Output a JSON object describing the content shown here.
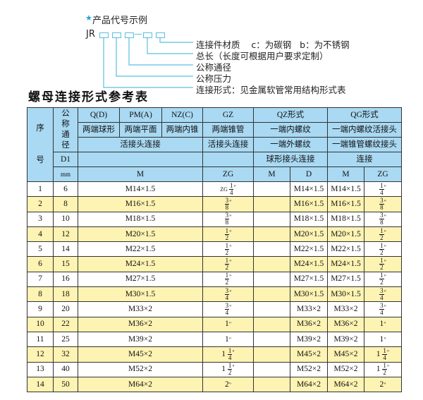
{
  "example": {
    "title": "产品代号示例",
    "star_icon": "star-icon",
    "code_prefix": "JR",
    "labels": [
      "连接件材质    c：为碳钢   b：为不锈钢",
      "总长（长度可根据用户要求定制）",
      "公称通径",
      "公称压力",
      "连接形式：见金属软管常用结构形式表"
    ],
    "accent_color": "#5bbfe0"
  },
  "table": {
    "title": "螺母连接形式参考表",
    "header": {
      "seq": [
        "序",
        "号"
      ],
      "nominal": "公称通径",
      "d1": "D1",
      "mm": "mm",
      "row1": [
        "Q(D)",
        "PM(A)",
        "NZ(C)",
        "GZ",
        "QZ形式",
        "QG形式"
      ],
      "row2": [
        "两端球形",
        "两端平面",
        "两端内锥",
        "两端锥管",
        "一端内螺纹",
        "一端内螺纹活接头"
      ],
      "row3": [
        "活接头连接",
        "活接头连接",
        "一端外螺纹",
        "一端锥管螺纹接头"
      ],
      "row4": [
        "",
        "",
        "球形接头连接",
        "连接"
      ],
      "row5": [
        "M",
        "ZG",
        "M",
        "D",
        "M",
        "ZG"
      ]
    },
    "header_color": "#a9d9f3",
    "alt_row_color": "#fdf3b3",
    "rows": [
      {
        "no": "1",
        "dn": "6",
        "m": "M14×1.5",
        "zg": {
          "pre": "ZG",
          "w": "",
          "n": "1",
          "d": "4"
        },
        "qzm": "",
        "qzd": "M14×1.5",
        "qgm": "M14×1.5",
        "qgzg": {
          "w": "",
          "n": "1",
          "d": "4"
        }
      },
      {
        "no": "2",
        "dn": "8",
        "m": "M16×1.5",
        "zg": {
          "w": "",
          "n": "3",
          "d": "8"
        },
        "qzm": "",
        "qzd": "M16×1.5",
        "qgm": "M16×1.5",
        "qgzg": {
          "w": "",
          "n": "3",
          "d": "8"
        }
      },
      {
        "no": "3",
        "dn": "10",
        "m": "M18×1.5",
        "zg": {
          "w": "",
          "n": "3",
          "d": "8"
        },
        "qzm": "",
        "qzd": "M18×1.5",
        "qgm": "M18×1.5",
        "qgzg": {
          "w": "",
          "n": "3",
          "d": "8"
        }
      },
      {
        "no": "4",
        "dn": "12",
        "m": "M20×1.5",
        "zg": {
          "w": "",
          "n": "1",
          "d": "2"
        },
        "qzm": "",
        "qzd": "M20×1.5",
        "qgm": "M20×1.5",
        "qgzg": {
          "w": "",
          "n": "1",
          "d": "2"
        }
      },
      {
        "no": "5",
        "dn": "14",
        "m": "M22×1.5",
        "zg": {
          "w": "",
          "n": "1",
          "d": "2"
        },
        "qzm": "",
        "qzd": "M22×1.5",
        "qgm": "M22×1.5",
        "qgzg": {
          "w": "",
          "n": "1",
          "d": "2"
        }
      },
      {
        "no": "6",
        "dn": "15",
        "m": "M24×1.5",
        "zg": {
          "w": "",
          "n": "1",
          "d": "2"
        },
        "qzm": "",
        "qzd": "M24×1.5",
        "qgm": "M24×1.5",
        "qgzg": {
          "w": "",
          "n": "1",
          "d": "2"
        }
      },
      {
        "no": "7",
        "dn": "16",
        "m": "M27×1.5",
        "zg": {
          "w": "",
          "n": "1",
          "d": "2"
        },
        "qzm": "",
        "qzd": "M27×1.5",
        "qgm": "M27×1.5",
        "qgzg": {
          "w": "",
          "n": "1",
          "d": "2"
        }
      },
      {
        "no": "8",
        "dn": "18",
        "m": "M30×1.5",
        "zg": {
          "w": "",
          "n": "3",
          "d": "4"
        },
        "qzm": "",
        "qzd": "M30×1.5",
        "qgm": "M30×1.5",
        "qgzg": {
          "w": "",
          "n": "3",
          "d": "4"
        }
      },
      {
        "no": "9",
        "dn": "20",
        "m": "M33×2",
        "zg": {
          "w": "",
          "n": "3",
          "d": "4"
        },
        "qzm": "",
        "qzd": "M33×2",
        "qgm": "M33×2",
        "qgzg": {
          "w": "",
          "n": "3",
          "d": "4"
        }
      },
      {
        "no": "10",
        "dn": "22",
        "m": "M36×2",
        "zg": {
          "w": "1"
        },
        "qzm": "",
        "qzd": "M36×2",
        "qgm": "M36×2",
        "qgzg": {
          "w": "1"
        }
      },
      {
        "no": "11",
        "dn": "25",
        "m": "M39×2",
        "zg": {
          "w": "1"
        },
        "qzm": "",
        "qzd": "M39×2",
        "qgm": "M39×2",
        "qgzg": {
          "w": "1"
        }
      },
      {
        "no": "12",
        "dn": "32",
        "m": "M45×2",
        "zg": {
          "w": "1",
          "n": "1",
          "d": "4"
        },
        "qzm": "",
        "qzd": "M45×2",
        "qgm": "M45×2",
        "qgzg": {
          "w": "1",
          "n": "1",
          "d": "4"
        }
      },
      {
        "no": "13",
        "dn": "40",
        "m": "M52×2",
        "zg": {
          "w": "1",
          "n": "1",
          "d": "2"
        },
        "qzm": "",
        "qzd": "M52×2",
        "qgm": "M52×2",
        "qgzg": {
          "w": "1",
          "n": "1",
          "d": "2"
        }
      },
      {
        "no": "14",
        "dn": "50",
        "m": "M64×2",
        "zg": {
          "w": "2"
        },
        "qzm": "",
        "qzd": "M64×2",
        "qgm": "M64×2",
        "qgzg": {
          "w": "2"
        }
      }
    ]
  }
}
